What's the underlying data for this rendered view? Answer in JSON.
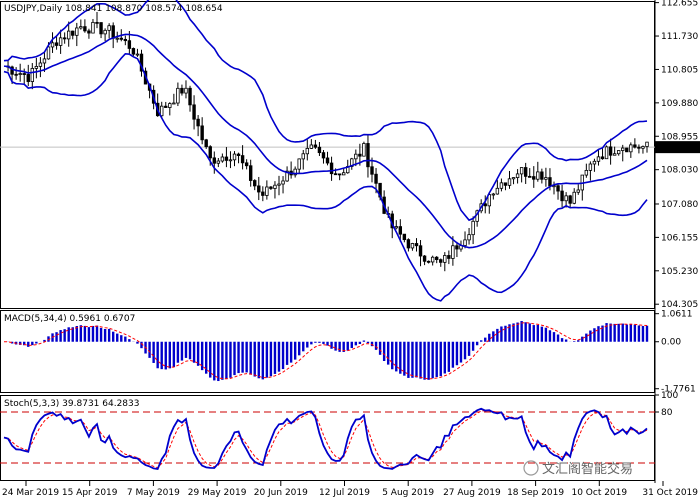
{
  "chart_data": [
    {
      "type": "candlestick",
      "title": "USDJPY,Daily",
      "ohlc_header": "108.841 108.870 108.574 108.654",
      "last_price": "108.654",
      "y_ticks": [
        "112.655",
        "111.730",
        "110.805",
        "109.880",
        "108.955",
        "108.030",
        "107.080",
        "106.155",
        "105.230",
        "104.305"
      ],
      "y_range": [
        104.2,
        112.7
      ],
      "closes_sampled": [
        {
          "date": "2019-03-20",
          "close": 110.9
        },
        {
          "date": "2019-03-28",
          "close": 110.6
        },
        {
          "date": "2019-04-05",
          "close": 111.6
        },
        {
          "date": "2019-04-15",
          "close": 112.0
        },
        {
          "date": "2019-04-24",
          "close": 111.9
        },
        {
          "date": "2019-05-02",
          "close": 111.4
        },
        {
          "date": "2019-05-13",
          "close": 109.6
        },
        {
          "date": "2019-05-21",
          "close": 110.3
        },
        {
          "date": "2019-05-31",
          "close": 108.3
        },
        {
          "date": "2019-06-10",
          "close": 108.5
        },
        {
          "date": "2019-06-20",
          "close": 107.3
        },
        {
          "date": "2019-06-28",
          "close": 107.9
        },
        {
          "date": "2019-07-10",
          "close": 108.6
        },
        {
          "date": "2019-07-22",
          "close": 107.9
        },
        {
          "date": "2019-07-31",
          "close": 108.6
        },
        {
          "date": "2019-08-06",
          "close": 106.5
        },
        {
          "date": "2019-08-13",
          "close": 105.8
        },
        {
          "date": "2019-08-23",
          "close": 105.4
        },
        {
          "date": "2019-08-30",
          "close": 106.3
        },
        {
          "date": "2019-09-10",
          "close": 107.5
        },
        {
          "date": "2019-09-19",
          "close": 108.0
        },
        {
          "date": "2019-09-27",
          "close": 107.9
        },
        {
          "date": "2019-10-03",
          "close": 107.1
        },
        {
          "date": "2019-10-14",
          "close": 108.4
        },
        {
          "date": "2019-10-23",
          "close": 108.7
        },
        {
          "date": "2019-10-31",
          "close": 108.65
        }
      ],
      "bollinger_bands": true
    },
    {
      "type": "bar",
      "title": "MACD(5,34,4) 0.5961 0.6707",
      "y_ticks": [
        "1.0611",
        "0.00",
        "-1.7761"
      ],
      "y_range": [
        -1.9,
        1.2
      ],
      "signal_line": true
    },
    {
      "type": "line",
      "title": "Stoch(5,3,3) 39.8731 64.2833",
      "y_ticks": [
        "100",
        "80",
        "20",
        "0"
      ],
      "y_range": [
        0,
        100
      ],
      "levels": [
        80,
        20
      ]
    }
  ],
  "x_ticks": [
    "24 Mar 2019",
    "15 Apr 2019",
    "7 May 2019",
    "29 May 2019",
    "20 Jun 2019",
    "12 Jul 2019",
    "5 Aug 2019",
    "27 Aug 2019",
    "18 Sep 2019",
    "10 Oct 2019",
    "31 Oct 2019"
  ],
  "watermark": "文汇阁智能交易",
  "colors": {
    "candle": "#000000",
    "band": "#0000cc",
    "macd": "#0000cc",
    "signal": "#ff0000",
    "stoch": "#0000cc",
    "grid": "#c0c0c0",
    "level": "#cc0000"
  }
}
